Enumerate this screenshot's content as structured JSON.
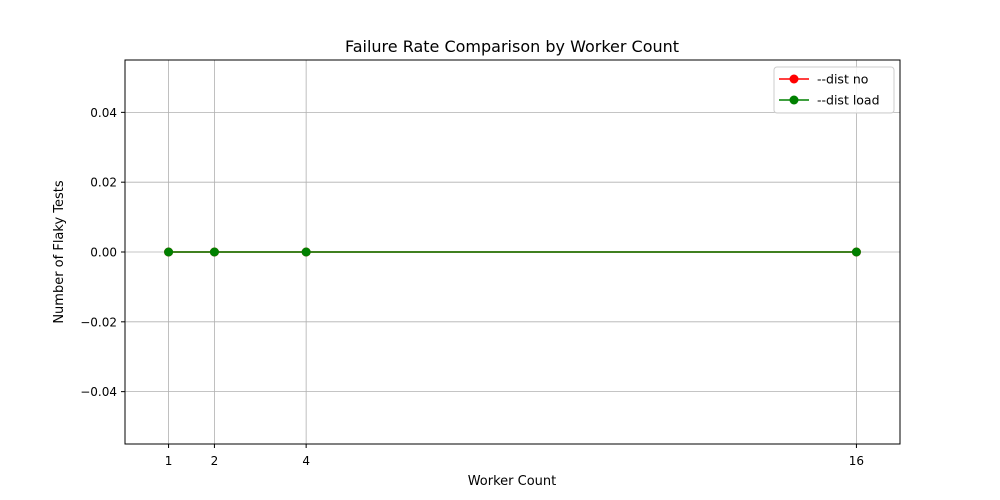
{
  "chart_data": {
    "type": "line",
    "title": "Failure Rate Comparison by Worker Count",
    "xlabel": "Worker Count",
    "ylabel": "Number of Flaky Tests",
    "x": [
      1,
      2,
      4,
      16
    ],
    "xlim": [
      0.05,
      16.95
    ],
    "ylim": [
      -0.055,
      0.055
    ],
    "xticks": [
      1,
      2,
      4,
      16
    ],
    "yticks": [
      -0.04,
      -0.02,
      0.0,
      0.02,
      0.04
    ],
    "ytick_labels": [
      "−0.04",
      "−0.02",
      "0.00",
      "0.02",
      "0.04"
    ],
    "grid": true,
    "legend_position": "top-right",
    "series": [
      {
        "name": "--dist no",
        "values": [
          0,
          0,
          0,
          0
        ],
        "color": "#ff0000",
        "marker": "circle"
      },
      {
        "name": "--dist load",
        "values": [
          0,
          0,
          0,
          0
        ],
        "color": "#008000",
        "marker": "circle"
      }
    ]
  }
}
